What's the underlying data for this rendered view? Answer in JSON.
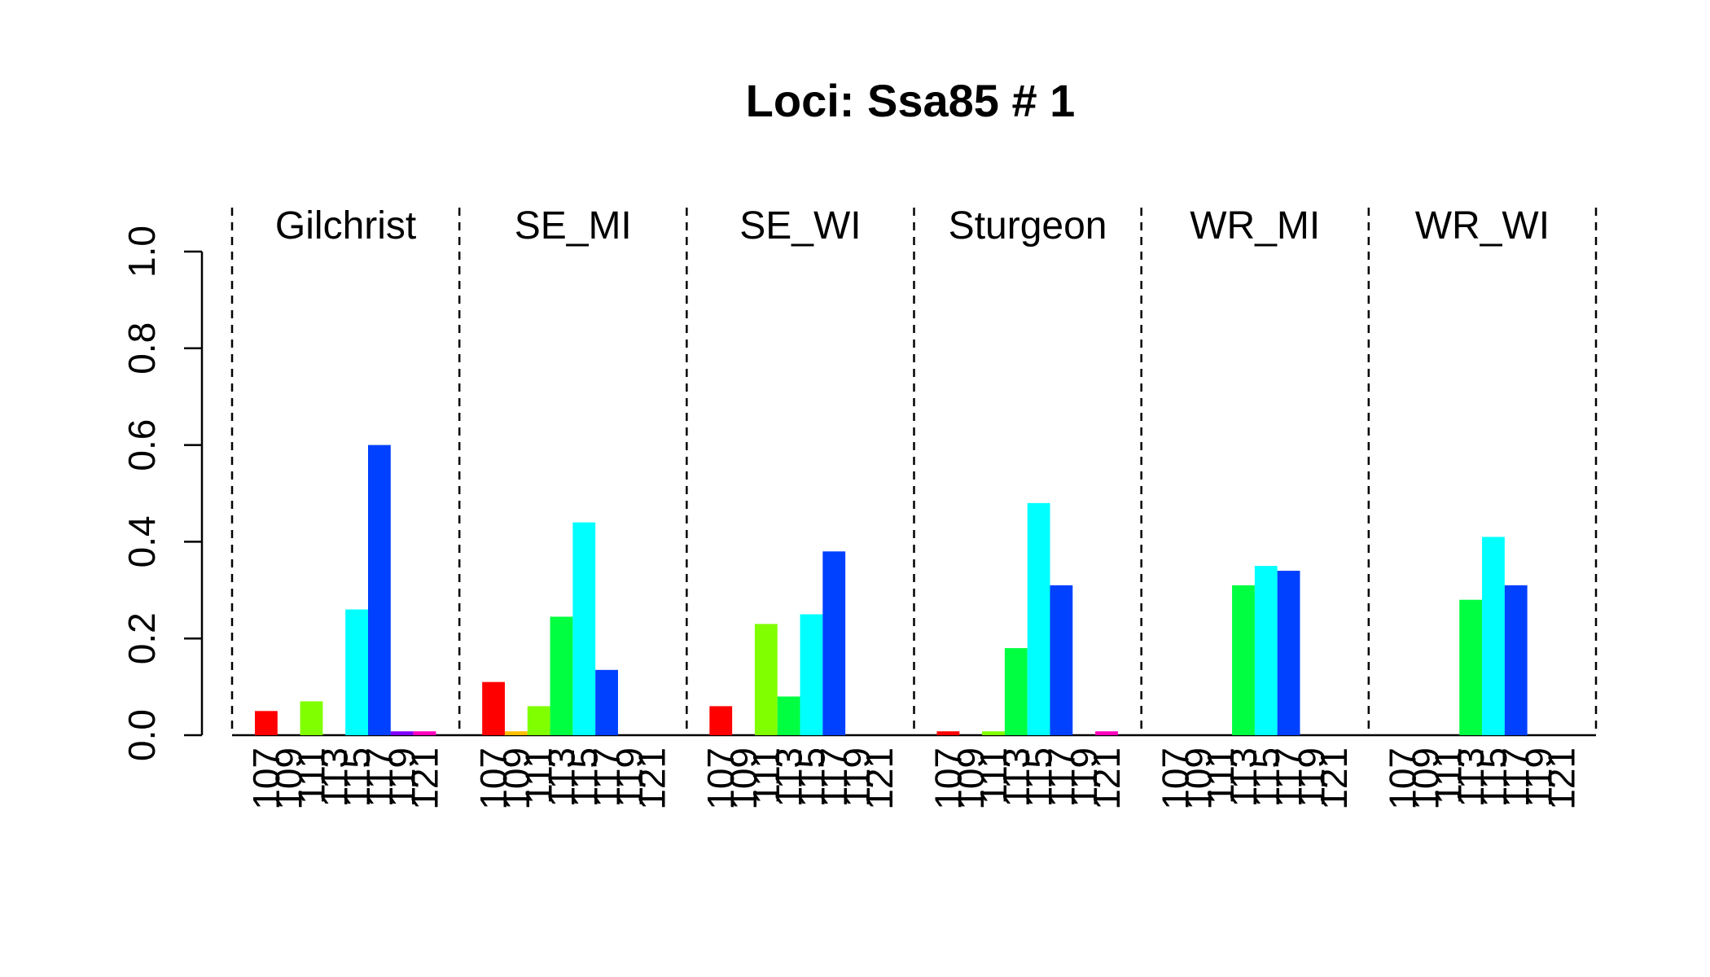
{
  "chart_data": {
    "type": "bar",
    "title": "Loci: Ssa85 # 1",
    "ylim": [
      0,
      1.0
    ],
    "yticks": [
      "0.0",
      "0.2",
      "0.4",
      "0.6",
      "0.8",
      "1.0"
    ],
    "categories": [
      "107",
      "109",
      "111",
      "113",
      "115",
      "117",
      "119",
      "121"
    ],
    "colors": [
      "#FF0000",
      "#FFBF00",
      "#80FF00",
      "#00FF40",
      "#00FFFF",
      "#0040FF",
      "#8000FF",
      "#FF00BF"
    ],
    "panels": [
      {
        "name": "Gilchrist",
        "values": [
          0.05,
          0.0,
          0.07,
          0.0,
          0.26,
          0.6,
          0.008,
          0.008
        ]
      },
      {
        "name": "SE_MI",
        "values": [
          0.11,
          0.008,
          0.06,
          0.245,
          0.44,
          0.135,
          0.0,
          0.0
        ]
      },
      {
        "name": "SE_WI",
        "values": [
          0.06,
          0.0,
          0.23,
          0.08,
          0.25,
          0.38,
          0.0,
          0.0
        ]
      },
      {
        "name": "Sturgeon",
        "values": [
          0.008,
          0.0,
          0.008,
          0.18,
          0.48,
          0.31,
          0.0,
          0.008
        ]
      },
      {
        "name": "WR_MI",
        "values": [
          0.0,
          0.0,
          0.0,
          0.31,
          0.35,
          0.34,
          0.0,
          0.0
        ]
      },
      {
        "name": "WR_WI",
        "values": [
          0.0,
          0.0,
          0.0,
          0.28,
          0.41,
          0.31,
          0.0,
          0.0
        ]
      }
    ],
    "grid": false,
    "legend": "none"
  }
}
